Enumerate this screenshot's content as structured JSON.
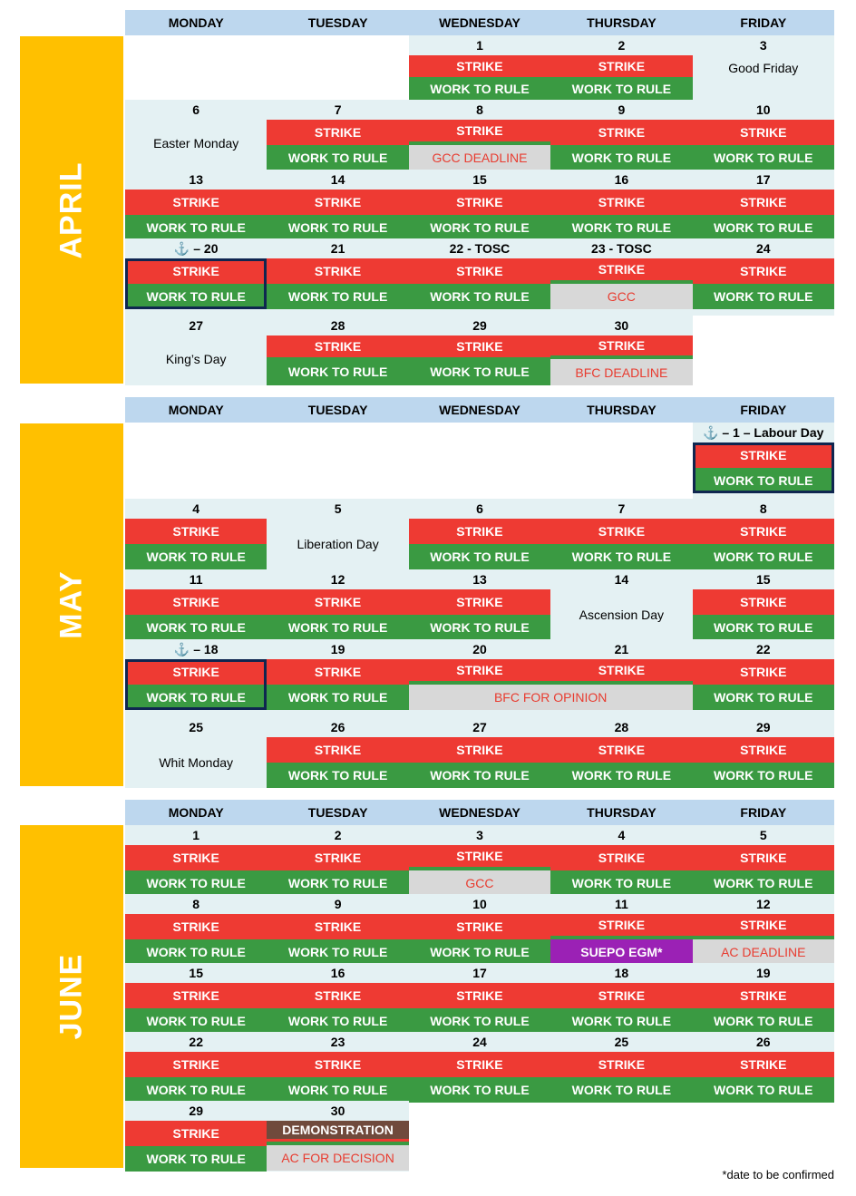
{
  "labels": {
    "strike": "STRIKE",
    "work_to_rule": "WORK TO RULE",
    "demonstration": "DEMONSTRATION"
  },
  "weekdays": [
    "MONDAY",
    "TUESDAY",
    "WEDNESDAY",
    "THURSDAY",
    "FRIDAY"
  ],
  "months": {
    "april": {
      "name": "APRIL",
      "dates": {
        "d1": "1",
        "d2": "2",
        "d3": "3",
        "d6": "6",
        "d7": "7",
        "d8": "8",
        "d9": "9",
        "d10": "10",
        "d13": "13",
        "d14": "14",
        "d15": "15",
        "d16": "16",
        "d17": "17",
        "d20": "⚓ – 20",
        "d21": "21",
        "d22": "22 - TOSC",
        "d23": "23 - TOSC",
        "d24": "24",
        "d27": "27",
        "d28": "28",
        "d29": "29",
        "d30": "30"
      },
      "holidays": {
        "good_friday": "Good Friday",
        "easter_monday": "Easter Monday",
        "kings_day": "King’s Day"
      },
      "events": {
        "gcc_deadline": "GCC DEADLINE",
        "gcc": "GCC",
        "bfc_deadline": "BFC DEADLINE"
      }
    },
    "may": {
      "name": "MAY",
      "dates": {
        "d1": "⚓ – 1 – Labour Day",
        "d4": "4",
        "d5": "5",
        "d6": "6",
        "d7": "7",
        "d8": "8",
        "d11": "11",
        "d12": "12",
        "d13": "13",
        "d14": "14",
        "d15": "15",
        "d18": "⚓ – 18",
        "d19": "19",
        "d20": "20",
        "d21": "21",
        "d22": "22",
        "d25": "25",
        "d26": "26",
        "d27": "27",
        "d28": "28",
        "d29": "29"
      },
      "holidays": {
        "liberation_day": "Liberation Day",
        "ascension_day": "Ascension Day",
        "whit_monday": "Whit Monday"
      },
      "events": {
        "bfc_for_opinion": "BFC FOR OPINION"
      }
    },
    "june": {
      "name": "JUNE",
      "dates": {
        "d1": "1",
        "d2": "2",
        "d3": "3",
        "d4": "4",
        "d5": "5",
        "d8": "8",
        "d9": "9",
        "d10": "10",
        "d11": "11",
        "d12": "12",
        "d15": "15",
        "d16": "16",
        "d17": "17",
        "d18": "18",
        "d19": "19",
        "d22": "22",
        "d23": "23",
        "d24": "24",
        "d25": "25",
        "d26": "26",
        "d29": "29",
        "d30": "30"
      },
      "events": {
        "gcc": "GCC",
        "suepo_egm": "SUEPO EGM*",
        "ac_deadline": "AC DEADLINE",
        "ac_for_decision": "AC FOR DECISION"
      }
    }
  },
  "footnote": "*date to be confirmed",
  "colors": {
    "strike": "#ee3a33",
    "work_to_rule": "#3a9a42",
    "month_band": "#ffc000",
    "header": "#bdd7ee",
    "highlight": "#0f2650",
    "suepo": "#9b21b5",
    "demonstration": "#704a3c"
  }
}
